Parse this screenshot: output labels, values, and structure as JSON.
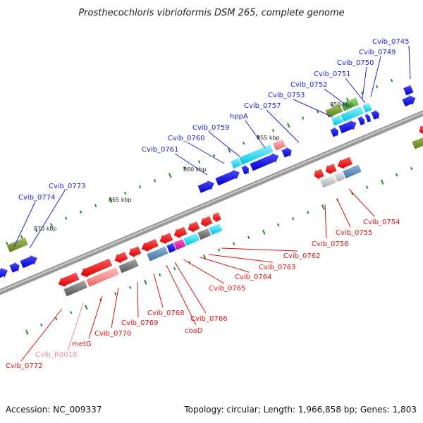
{
  "title": "Prosthecochloris vibrioformis DSM 265, complete genome",
  "colors": {
    "label_upper": "#2222cc",
    "label_lower": "#dd1111",
    "label_rna": "#ee88aa",
    "tick": "#2a8a2a",
    "backbone": "#8a8a8a"
  },
  "scale_labels": [
    "850 kbp",
    "855 kbp",
    "860 kbp",
    "865 kbp",
    "870 kbp"
  ],
  "upper_labels": [
    "Cvib_0745",
    "Cvib_0749",
    "Cvib_0750",
    "Cvib_0751",
    "Cvib_0752",
    "Cvib_0753",
    "Cvib_0757",
    "hppA",
    "Cvib_0759",
    "Cvib_0760",
    "Cvib_0761",
    "Cvib_0773",
    "Cvib_0774"
  ],
  "lower_labels": [
    "Cvib_0754",
    "Cvib_0755",
    "Cvib_0756",
    "Cvib_0762",
    "Cvib_0763",
    "Cvib_0764",
    "Cvib_0765",
    "Cvib_0766",
    "coaD",
    "Cvib_0768",
    "Cvib_0769",
    "Cvib_0770",
    "metG",
    "Cvib_R0018",
    "Cvib_0772"
  ],
  "footer": {
    "accession": "Accession: NC_009337",
    "stats": "Topology: circular; Length: 1,966,858 bp; Genes: 1,803"
  }
}
